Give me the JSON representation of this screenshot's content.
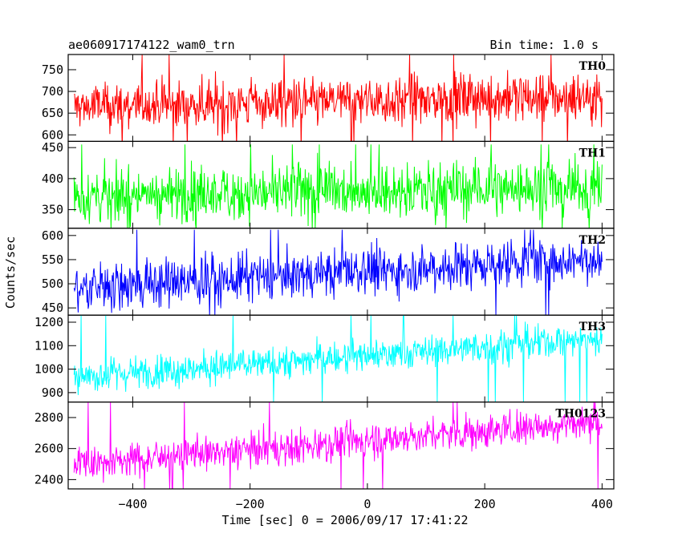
{
  "header": {
    "obs_id": "ae060917174122_wam0_trn",
    "bin_time": "Bin time: 1.0 s"
  },
  "chart_data": {
    "type": "line",
    "title": "ae060917174122_wam0_trn",
    "xlabel": "Time [sec] 0 = 2006/09/17 17:41:22",
    "ylabel": "Counts/sec",
    "xlim": [
      -510,
      420
    ],
    "x_ticks": [
      -400,
      -200,
      0,
      200,
      400
    ],
    "x_tick_labels": [
      "−400",
      "−200",
      "0",
      "200",
      "400"
    ],
    "x_range": [
      -500,
      400
    ],
    "panels": [
      {
        "name": "TH0",
        "color": "#ff0000",
        "ylim": [
          585,
          785
        ],
        "y_ticks": [
          600,
          650,
          700,
          750
        ],
        "trend": [
          665,
          690
        ],
        "noise": 28,
        "spike_max": 785,
        "spike_min": 572
      },
      {
        "name": "TH1",
        "color": "#00ff00",
        "ylim": [
          320,
          460
        ],
        "y_ticks": [
          350,
          400,
          450
        ],
        "trend": [
          372,
          388
        ],
        "noise": 22,
        "spike_max": 455,
        "spike_min": 318
      },
      {
        "name": "TH2",
        "color": "#0000ff",
        "ylim": [
          435,
          615
        ],
        "y_ticks": [
          450,
          500,
          550,
          600
        ],
        "trend": [
          490,
          555
        ],
        "noise": 25,
        "spike_max": 612,
        "spike_min": 432
      },
      {
        "name": "TH3",
        "color": "#00ffff",
        "ylim": [
          860,
          1230
        ],
        "y_ticks": [
          900,
          1000,
          1100,
          1200
        ],
        "trend": [
          965,
          1130
        ],
        "noise": 35,
        "spike_max": 1230,
        "spike_min": 858
      },
      {
        "name": "TH0123",
        "color": "#ff00ff",
        "ylim": [
          2340,
          2900
        ],
        "y_ticks": [
          2400,
          2600,
          2800
        ],
        "trend": [
          2500,
          2775
        ],
        "noise": 55,
        "spike_max": 2900,
        "spike_min": 2338
      }
    ]
  }
}
